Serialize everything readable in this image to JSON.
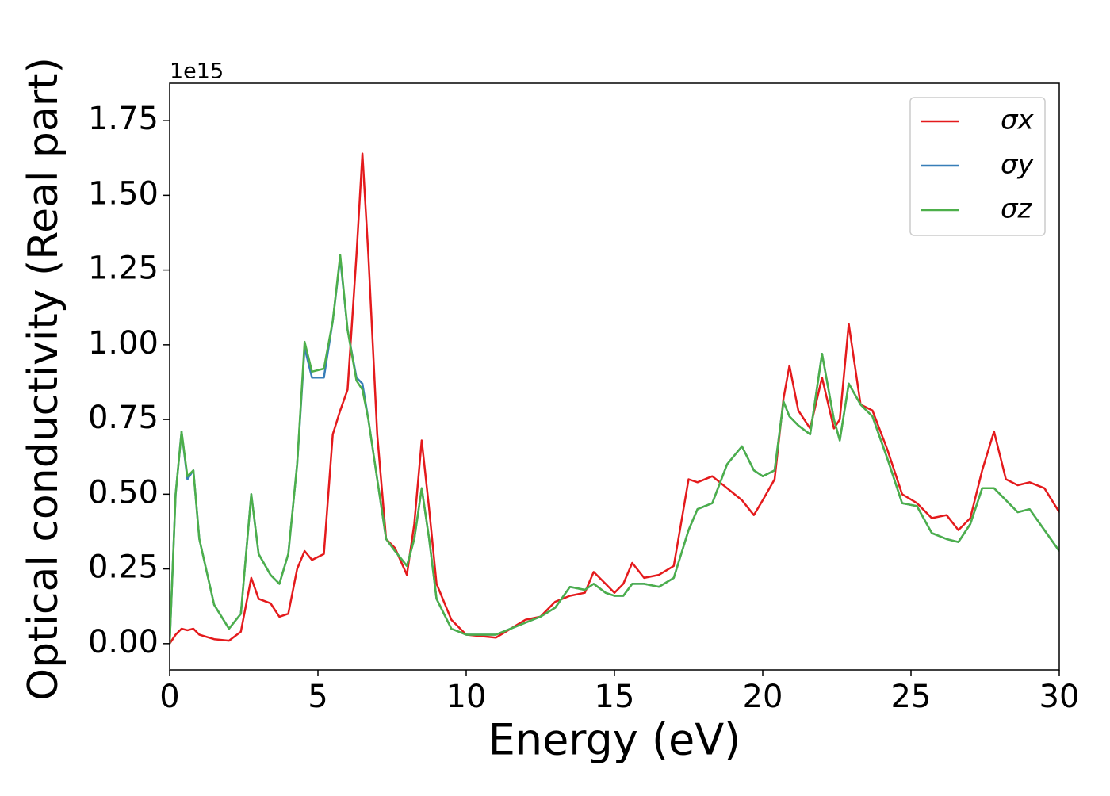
{
  "chart_data": {
    "type": "line",
    "xlabel": "Energy (eV)",
    "ylabel": "Optical conductivity (Real part)",
    "y_offset_label": "1e15",
    "x": [
      0,
      0.2,
      0.4,
      0.6,
      0.8,
      1.0,
      1.5,
      2.0,
      2.4,
      2.75,
      3.0,
      3.4,
      3.7,
      4.0,
      4.3,
      4.55,
      4.8,
      5.2,
      5.5,
      5.75,
      6.0,
      6.3,
      6.5,
      6.7,
      7.0,
      7.3,
      7.6,
      8.0,
      8.25,
      8.5,
      8.75,
      9.0,
      9.5,
      10,
      11,
      12,
      12.5,
      13,
      13.5,
      14,
      14.3,
      14.7,
      15,
      15.3,
      15.6,
      16,
      16.5,
      17,
      17.5,
      17.8,
      18.3,
      18.8,
      19.3,
      19.7,
      20,
      20.4,
      20.7,
      20.9,
      21.2,
      21.6,
      22,
      22.4,
      22.6,
      22.9,
      23.3,
      23.7,
      24.2,
      24.7,
      25.2,
      25.7,
      26.2,
      26.6,
      27,
      27.4,
      27.8,
      28.2,
      28.6,
      29,
      29.5,
      30
    ],
    "series": [
      {
        "name": "σx",
        "color": "#e41a1c",
        "values": [
          0,
          0.03,
          0.05,
          0.045,
          0.05,
          0.03,
          0.015,
          0.01,
          0.04,
          0.22,
          0.15,
          0.135,
          0.09,
          0.1,
          0.25,
          0.31,
          0.28,
          0.3,
          0.7,
          0.78,
          0.85,
          1.3,
          1.64,
          1.3,
          0.7,
          0.35,
          0.32,
          0.23,
          0.4,
          0.68,
          0.45,
          0.2,
          0.08,
          0.03,
          0.02,
          0.08,
          0.09,
          0.14,
          0.16,
          0.17,
          0.24,
          0.2,
          0.17,
          0.2,
          0.27,
          0.22,
          0.23,
          0.26,
          0.55,
          0.54,
          0.56,
          0.52,
          0.48,
          0.43,
          0.48,
          0.55,
          0.82,
          0.93,
          0.78,
          0.72,
          0.89,
          0.72,
          0.75,
          1.07,
          0.8,
          0.78,
          0.65,
          0.5,
          0.47,
          0.42,
          0.43,
          0.38,
          0.42,
          0.58,
          0.71,
          0.55,
          0.53,
          0.54,
          0.52,
          0.44
        ]
      },
      {
        "name": "σy",
        "color": "#377eb8",
        "values": [
          0,
          0.5,
          0.71,
          0.55,
          0.58,
          0.35,
          0.13,
          0.05,
          0.1,
          0.5,
          0.3,
          0.23,
          0.2,
          0.3,
          0.6,
          0.99,
          0.89,
          0.89,
          1.08,
          1.29,
          1.05,
          0.89,
          0.87,
          0.75,
          0.55,
          0.35,
          0.31,
          0.26,
          0.35,
          0.52,
          0.35,
          0.15,
          0.05,
          0.03,
          0.03,
          0.07,
          0.09,
          0.12,
          0.19,
          0.18,
          0.2,
          0.17,
          0.16,
          0.16,
          0.2,
          0.2,
          0.19,
          0.22,
          0.38,
          0.45,
          0.47,
          0.6,
          0.66,
          0.58,
          0.56,
          0.58,
          0.81,
          0.76,
          0.73,
          0.7,
          0.97,
          0.75,
          0.68,
          0.87,
          0.8,
          0.76,
          0.62,
          0.47,
          0.46,
          0.37,
          0.35,
          0.34,
          0.4,
          0.52,
          0.52,
          0.48,
          0.44,
          0.45,
          0.38,
          0.31
        ]
      },
      {
        "name": "σz",
        "color": "#4daf4a",
        "values": [
          0,
          0.5,
          0.71,
          0.56,
          0.58,
          0.35,
          0.13,
          0.05,
          0.1,
          0.5,
          0.3,
          0.23,
          0.2,
          0.3,
          0.6,
          1.01,
          0.91,
          0.92,
          1.08,
          1.3,
          1.05,
          0.88,
          0.85,
          0.75,
          0.55,
          0.35,
          0.31,
          0.26,
          0.35,
          0.52,
          0.35,
          0.15,
          0.05,
          0.03,
          0.03,
          0.07,
          0.09,
          0.12,
          0.19,
          0.18,
          0.2,
          0.17,
          0.16,
          0.16,
          0.2,
          0.2,
          0.19,
          0.22,
          0.38,
          0.45,
          0.47,
          0.6,
          0.66,
          0.58,
          0.56,
          0.58,
          0.81,
          0.76,
          0.73,
          0.7,
          0.97,
          0.75,
          0.68,
          0.87,
          0.8,
          0.76,
          0.62,
          0.47,
          0.46,
          0.37,
          0.35,
          0.34,
          0.4,
          0.52,
          0.52,
          0.48,
          0.44,
          0.45,
          0.38,
          0.31
        ]
      }
    ],
    "xlim": [
      0,
      30
    ],
    "xticks": [
      0,
      5,
      10,
      15,
      20,
      25,
      30
    ],
    "ylim": [
      -0.088,
      1.875
    ],
    "yticks": [
      {
        "value": 0,
        "label": "0.00"
      },
      0.25,
      {
        "value": 0.5,
        "label": "0.50"
      },
      0.75,
      {
        "value": 1,
        "label": "1.00"
      },
      1.25,
      {
        "value": 1.5,
        "label": "1.50"
      },
      1.75
    ],
    "legend": "upper right"
  }
}
